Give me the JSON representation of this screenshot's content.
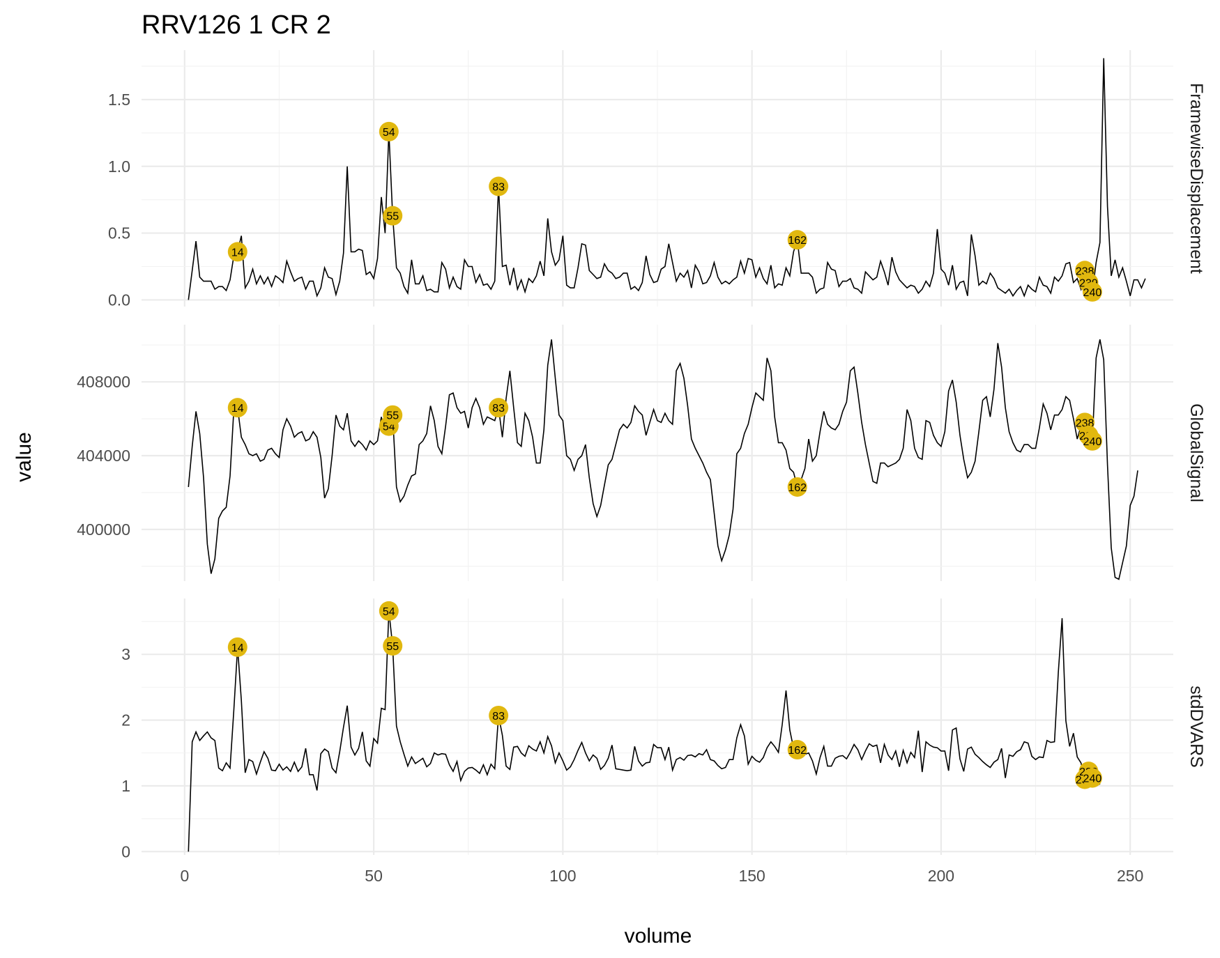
{
  "chart_data": {
    "type": "line",
    "title": "RRV126  1  CR  2",
    "xlabel": "volume",
    "ylabel": "value",
    "xlim": [
      0,
      250
    ],
    "x_ticks": [
      0,
      50,
      100,
      150,
      200,
      250
    ],
    "grid": true,
    "facets": [
      {
        "name": "FramewiseDisplacement",
        "ylim": [
          -0.05,
          1.87
        ],
        "y_ticks": [
          0.0,
          0.5,
          1.0,
          1.5
        ],
        "y_tick_labels": [
          "0.0",
          "0.5",
          "1.0",
          "1.5"
        ],
        "values": [
          0.0,
          0.22,
          0.44,
          0.17,
          0.14,
          0.14,
          0.14,
          0.08,
          0.1,
          0.1,
          0.07,
          0.15,
          0.33,
          0.36,
          0.48,
          0.09,
          0.14,
          0.23,
          0.12,
          0.18,
          0.12,
          0.17,
          0.1,
          0.18,
          0.16,
          0.13,
          0.29,
          0.21,
          0.14,
          0.16,
          0.17,
          0.08,
          0.14,
          0.14,
          0.03,
          0.09,
          0.24,
          0.17,
          0.16,
          0.04,
          0.14,
          0.35,
          1.0,
          0.36,
          0.36,
          0.38,
          0.37,
          0.19,
          0.21,
          0.16,
          0.31,
          0.77,
          0.5,
          1.26,
          0.63,
          0.24,
          0.2,
          0.1,
          0.05,
          0.3,
          0.12,
          0.12,
          0.18,
          0.07,
          0.08,
          0.06,
          0.06,
          0.28,
          0.23,
          0.09,
          0.17,
          0.1,
          0.08,
          0.3,
          0.25,
          0.25,
          0.13,
          0.19,
          0.11,
          0.12,
          0.08,
          0.14,
          0.85,
          0.25,
          0.26,
          0.11,
          0.24,
          0.08,
          0.15,
          0.06,
          0.16,
          0.13,
          0.18,
          0.29,
          0.18,
          0.61,
          0.36,
          0.26,
          0.3,
          0.48,
          0.11,
          0.09,
          0.09,
          0.24,
          0.42,
          0.41,
          0.22,
          0.19,
          0.16,
          0.17,
          0.27,
          0.22,
          0.2,
          0.16,
          0.17,
          0.2,
          0.2,
          0.08,
          0.1,
          0.07,
          0.13,
          0.33,
          0.19,
          0.13,
          0.14,
          0.23,
          0.25,
          0.42,
          0.28,
          0.14,
          0.2,
          0.17,
          0.22,
          0.09,
          0.26,
          0.21,
          0.12,
          0.13,
          0.18,
          0.28,
          0.17,
          0.12,
          0.14,
          0.12,
          0.15,
          0.17,
          0.29,
          0.2,
          0.31,
          0.3,
          0.17,
          0.24,
          0.16,
          0.12,
          0.26,
          0.09,
          0.12,
          0.11,
          0.24,
          0.18,
          0.36,
          0.45,
          0.2,
          0.2,
          0.2,
          0.17,
          0.05,
          0.08,
          0.09,
          0.28,
          0.23,
          0.22,
          0.1,
          0.14,
          0.14,
          0.16,
          0.09,
          0.08,
          0.05,
          0.21,
          0.18,
          0.15,
          0.17,
          0.29,
          0.21,
          0.11,
          0.32,
          0.21,
          0.15,
          0.12,
          0.09,
          0.11,
          0.1,
          0.05,
          0.08,
          0.14,
          0.1,
          0.2,
          0.53,
          0.23,
          0.2,
          0.11,
          0.26,
          0.08,
          0.13,
          0.14,
          0.03,
          0.49,
          0.33,
          0.11,
          0.14,
          0.12,
          0.2,
          0.16,
          0.09,
          0.07,
          0.05,
          0.08,
          0.03,
          0.07,
          0.1,
          0.03,
          0.11,
          0.08,
          0.06,
          0.17,
          0.11,
          0.1,
          0.05,
          0.17,
          0.14,
          0.18,
          0.27,
          0.28,
          0.13,
          0.16,
          0.08,
          0.22,
          0.13,
          0.06,
          0.28,
          0.43,
          1.81,
          0.7,
          0.18,
          0.3,
          0.17,
          0.24,
          0.14,
          0.03,
          0.15,
          0.15,
          0.09,
          0.16
        ],
        "markers": [
          {
            "x": 14,
            "label": "14"
          },
          {
            "x": 54,
            "label": "54"
          },
          {
            "x": 55,
            "label": "55"
          },
          {
            "x": 83,
            "label": "83"
          },
          {
            "x": 162,
            "label": "162"
          },
          {
            "x": 238,
            "label": "238"
          },
          {
            "x": 239,
            "label": "239"
          },
          {
            "x": 240,
            "label": "240"
          }
        ]
      },
      {
        "name": "GlobalSignal",
        "ylim": [
          397200,
          411100
        ],
        "y_ticks": [
          400000,
          404000,
          408000
        ],
        "y_tick_labels": [
          "400000",
          "404000",
          "408000"
        ],
        "values": [
          402300,
          404500,
          406400,
          405200,
          402800,
          399200,
          397600,
          398400,
          400600,
          401000,
          401200,
          402900,
          406500,
          406600,
          405000,
          404600,
          404100,
          404000,
          404100,
          403700,
          403800,
          404300,
          404400,
          404100,
          403900,
          405400,
          406000,
          405600,
          405000,
          405200,
          405300,
          404800,
          404900,
          405300,
          405000,
          403900,
          401700,
          402200,
          404000,
          406200,
          405600,
          405400,
          406300,
          404800,
          404500,
          404800,
          404600,
          404300,
          404800,
          404600,
          404800,
          406100,
          405200,
          405600,
          406200,
          402300,
          401500,
          401800,
          402400,
          402900,
          403000,
          404600,
          404800,
          405200,
          406700,
          405900,
          404500,
          404100,
          405600,
          407300,
          407400,
          406600,
          406300,
          406400,
          405500,
          406600,
          407100,
          406600,
          405700,
          406100,
          406000,
          405900,
          406600,
          405000,
          407100,
          408600,
          406600,
          404700,
          404500,
          406300,
          405900,
          405000,
          403600,
          403600,
          405400,
          408900,
          410300,
          408200,
          406200,
          405900,
          404000,
          403800,
          403200,
          403800,
          404000,
          404600,
          402800,
          401400,
          400700,
          401300,
          402400,
          403500,
          403800,
          404600,
          405400,
          405700,
          405500,
          405800,
          406700,
          406400,
          406200,
          405100,
          405800,
          406500,
          405900,
          405800,
          406300,
          405900,
          405700,
          408600,
          409000,
          408200,
          406700,
          404900,
          404400,
          404000,
          403600,
          403100,
          402700,
          400900,
          399100,
          398300,
          398900,
          399700,
          401100,
          404100,
          404400,
          405200,
          405700,
          406600,
          407400,
          407200,
          407000,
          409300,
          408600,
          406100,
          404700,
          404700,
          404300,
          403300,
          403100,
          402300,
          402700,
          403300,
          404900,
          403700,
          404000,
          405300,
          406400,
          405700,
          405500,
          405400,
          405700,
          406400,
          406900,
          408600,
          408800,
          407400,
          405800,
          404600,
          403600,
          402600,
          402500,
          403600,
          403600,
          403400,
          403500,
          403600,
          403800,
          404400,
          406500,
          405900,
          404400,
          403900,
          403800,
          405900,
          405800,
          405100,
          404700,
          404500,
          405300,
          407500,
          408100,
          406900,
          405100,
          403800,
          402800,
          403100,
          403700,
          405300,
          407000,
          407200,
          406100,
          407600,
          410100,
          408800,
          406600,
          405300,
          404700,
          404300,
          404200,
          404600,
          404600,
          404400,
          404400,
          405500,
          406800,
          406300,
          405400,
          406200,
          406200,
          406500,
          407200,
          407000,
          406000,
          404900,
          405600,
          405800,
          405100,
          404800,
          409300,
          410300,
          409200,
          403500,
          399000,
          397400,
          397300,
          398200,
          399100,
          401300,
          401800,
          403200
        ],
        "markers": [
          {
            "x": 14,
            "label": "14"
          },
          {
            "x": 54,
            "label": "54"
          },
          {
            "x": 55,
            "label": "55"
          },
          {
            "x": 83,
            "label": "83"
          },
          {
            "x": 162,
            "label": "162"
          },
          {
            "x": 238,
            "label": "238"
          },
          {
            "x": 239,
            "label": "239"
          },
          {
            "x": 240,
            "label": "240"
          }
        ]
      },
      {
        "name": "stdDVARS",
        "ylim": [
          -0.05,
          3.85
        ],
        "y_ticks": [
          0,
          1,
          2,
          3
        ],
        "y_tick_labels": [
          "0",
          "1",
          "2",
          "3"
        ],
        "values": [
          0.0,
          1.67,
          1.82,
          1.69,
          1.76,
          1.82,
          1.73,
          1.69,
          1.27,
          1.23,
          1.35,
          1.27,
          2.15,
          3.11,
          2.3,
          1.2,
          1.4,
          1.37,
          1.18,
          1.36,
          1.52,
          1.42,
          1.24,
          1.23,
          1.33,
          1.24,
          1.29,
          1.22,
          1.36,
          1.22,
          1.29,
          1.57,
          1.17,
          1.17,
          0.93,
          1.49,
          1.56,
          1.52,
          1.27,
          1.2,
          1.52,
          1.89,
          2.22,
          1.59,
          1.47,
          1.57,
          1.82,
          1.38,
          1.3,
          1.72,
          1.65,
          2.18,
          2.16,
          3.66,
          3.13,
          1.91,
          1.67,
          1.48,
          1.3,
          1.44,
          1.34,
          1.38,
          1.42,
          1.29,
          1.34,
          1.5,
          1.47,
          1.49,
          1.48,
          1.32,
          1.22,
          1.37,
          1.08,
          1.22,
          1.27,
          1.28,
          1.24,
          1.19,
          1.32,
          1.17,
          1.33,
          1.26,
          2.07,
          1.77,
          1.3,
          1.25,
          1.59,
          1.6,
          1.5,
          1.45,
          1.61,
          1.56,
          1.53,
          1.67,
          1.5,
          1.75,
          1.61,
          1.35,
          1.5,
          1.38,
          1.24,
          1.29,
          1.4,
          1.54,
          1.66,
          1.5,
          1.38,
          1.47,
          1.42,
          1.25,
          1.31,
          1.42,
          1.62,
          1.26,
          1.25,
          1.24,
          1.23,
          1.24,
          1.6,
          1.38,
          1.3,
          1.35,
          1.36,
          1.63,
          1.58,
          1.58,
          1.4,
          1.59,
          1.24,
          1.4,
          1.43,
          1.39,
          1.46,
          1.47,
          1.44,
          1.49,
          1.47,
          1.55,
          1.4,
          1.38,
          1.31,
          1.26,
          1.28,
          1.4,
          1.4,
          1.73,
          1.93,
          1.76,
          1.33,
          1.45,
          1.39,
          1.36,
          1.43,
          1.58,
          1.67,
          1.6,
          1.51,
          1.93,
          2.45,
          1.85,
          1.57,
          1.55,
          1.52,
          1.48,
          1.5,
          1.38,
          1.18,
          1.43,
          1.6,
          1.3,
          1.3,
          1.42,
          1.45,
          1.46,
          1.41,
          1.51,
          1.63,
          1.55,
          1.4,
          1.53,
          1.64,
          1.6,
          1.62,
          1.35,
          1.63,
          1.47,
          1.4,
          1.53,
          1.29,
          1.54,
          1.35,
          1.51,
          1.43,
          1.84,
          1.21,
          1.67,
          1.62,
          1.59,
          1.58,
          1.53,
          1.53,
          1.23,
          1.85,
          1.88,
          1.41,
          1.22,
          1.56,
          1.59,
          1.48,
          1.43,
          1.37,
          1.32,
          1.28,
          1.36,
          1.4,
          1.57,
          1.12,
          1.47,
          1.45,
          1.52,
          1.55,
          1.67,
          1.65,
          1.45,
          1.4,
          1.44,
          1.43,
          1.69,
          1.66,
          1.67,
          2.73,
          3.55,
          1.99,
          1.6,
          1.8,
          1.44,
          1.35,
          1.1,
          1.22,
          1.12,
          1.1,
          1.02
        ],
        "markers": [
          {
            "x": 14,
            "label": "14"
          },
          {
            "x": 54,
            "label": "54"
          },
          {
            "x": 55,
            "label": "55"
          },
          {
            "x": 83,
            "label": "83"
          },
          {
            "x": 162,
            "label": "162"
          },
          {
            "x": 238,
            "label": "238"
          },
          {
            "x": 239,
            "label": "239"
          },
          {
            "x": 240,
            "label": "240"
          }
        ]
      }
    ]
  }
}
